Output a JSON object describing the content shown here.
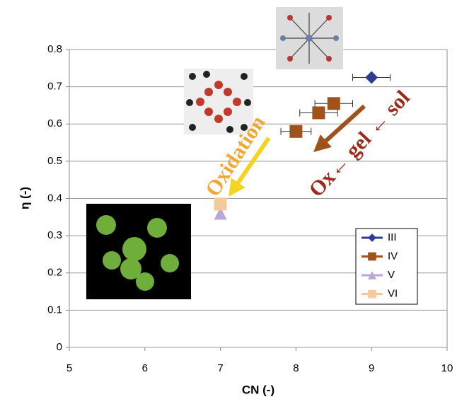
{
  "chart_data": {
    "type": "scatter",
    "x_label": "CN (-)",
    "y_label": "η (-)",
    "xlim": [
      5,
      10
    ],
    "xticks": [
      5,
      6,
      7,
      8,
      9,
      10
    ],
    "ylim": [
      0,
      0.8
    ],
    "yticks": [
      0,
      0.1,
      0.2,
      0.3,
      0.4,
      0.5,
      0.6,
      0.7,
      0.8
    ],
    "grid": true,
    "legend": "lower right",
    "series": [
      {
        "name": "III",
        "color": "#2e3d92",
        "marker": "diamond",
        "x": [
          9
        ],
        "values": [
          0.725
        ],
        "xerr": [
          0.25
        ]
      },
      {
        "name": "IV",
        "color": "#a0521c",
        "marker": "square",
        "x": [
          8,
          8.3,
          8.5
        ],
        "values": [
          0.58,
          0.63,
          0.655
        ],
        "xerr": [
          0.2,
          0.25,
          0.25
        ]
      },
      {
        "name": "V",
        "color": "#b9a7d6",
        "marker": "triangle",
        "x": [
          7
        ],
        "values": [
          0.36
        ]
      },
      {
        "name": "VI",
        "color": "#f5c99a",
        "marker": "square",
        "x": [
          7
        ],
        "values": [
          0.385
        ]
      }
    ],
    "annotations": [
      {
        "text": "Oxidation",
        "color": "#f0a830"
      },
      {
        "text": "Ox← gel ← sol",
        "color": "#9b2a1a"
      }
    ]
  }
}
